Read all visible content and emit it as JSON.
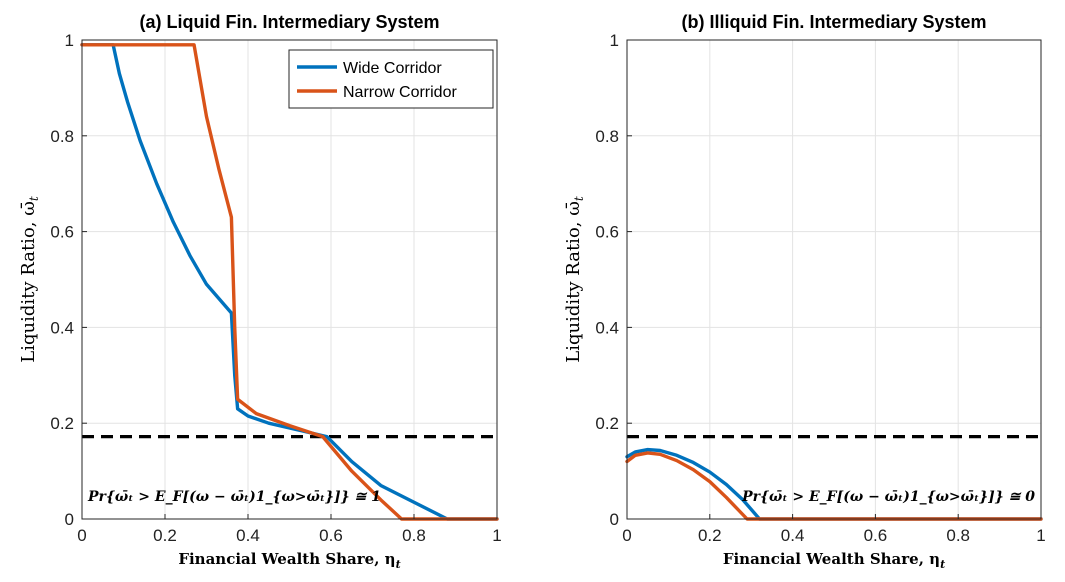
{
  "chart_data": [
    {
      "type": "line",
      "title": "(a) Liquid Fin. Intermediary System",
      "xlabel": "Financial Wealth Share, η",
      "xlabel_sub": "t",
      "ylabel": "Liquidity Ratio, ω̄",
      "ylabel_sub": "t",
      "xlim": [
        0,
        1
      ],
      "ylim": [
        0,
        1
      ],
      "xticks": [
        0,
        0.2,
        0.4,
        0.6,
        0.8,
        1
      ],
      "yticks": [
        0,
        0.2,
        0.4,
        0.6,
        0.8,
        1
      ],
      "xtick_labels": [
        "0",
        "0.2",
        "0.4",
        "0.6",
        "0.8",
        "1"
      ],
      "ytick_labels": [
        "0",
        "0.2",
        "0.4",
        "0.6",
        "0.8",
        "1"
      ],
      "grid": true,
      "legend": "top-right",
      "annotation": "Pr{ω̄ₜ > E_F[(ω − ω̄ₜ)1_{ω>ω̄ₜ}]} ≅ 1",
      "hline": {
        "y": 0.172,
        "style": "dashed",
        "color": "#000000"
      },
      "series": [
        {
          "name": "Wide Corridor",
          "color": "#0072BD",
          "x": [
            0.0,
            0.075,
            0.09,
            0.11,
            0.14,
            0.18,
            0.22,
            0.26,
            0.3,
            0.33,
            0.36,
            0.368,
            0.375,
            0.4,
            0.45,
            0.5,
            0.55,
            0.59,
            0.65,
            0.72,
            0.8,
            0.88,
            1.0
          ],
          "y": [
            0.99,
            0.99,
            0.93,
            0.87,
            0.79,
            0.7,
            0.62,
            0.55,
            0.49,
            0.46,
            0.43,
            0.3,
            0.23,
            0.215,
            0.2,
            0.19,
            0.18,
            0.172,
            0.12,
            0.07,
            0.035,
            0.0,
            0.0
          ]
        },
        {
          "name": "Narrow Corridor",
          "color": "#D95319",
          "x": [
            0.0,
            0.27,
            0.3,
            0.33,
            0.36,
            0.368,
            0.375,
            0.42,
            0.5,
            0.58,
            0.65,
            0.72,
            0.77,
            1.0
          ],
          "y": [
            0.99,
            0.99,
            0.84,
            0.73,
            0.63,
            0.4,
            0.25,
            0.22,
            0.195,
            0.172,
            0.1,
            0.04,
            0.0,
            0.0
          ]
        }
      ]
    },
    {
      "type": "line",
      "title": "(b) Illiquid Fin. Intermediary System",
      "xlabel": "Financial Wealth Share, η",
      "xlabel_sub": "t",
      "ylabel": "Liquidity Ratio, ω̄",
      "ylabel_sub": "t",
      "xlim": [
        0,
        1
      ],
      "ylim": [
        0,
        1
      ],
      "xticks": [
        0,
        0.2,
        0.4,
        0.6,
        0.8,
        1
      ],
      "yticks": [
        0,
        0.2,
        0.4,
        0.6,
        0.8,
        1
      ],
      "xtick_labels": [
        "0",
        "0.2",
        "0.4",
        "0.6",
        "0.8",
        "1"
      ],
      "ytick_labels": [
        "0",
        "0.2",
        "0.4",
        "0.6",
        "0.8",
        "1"
      ],
      "grid": true,
      "annotation": "Pr{ω̄ₜ > E_F[(ω − ω̄ₜ)1_{ω>ω̄ₜ}]} ≅ 0",
      "hline": {
        "y": 0.172,
        "style": "dashed",
        "color": "#000000"
      },
      "series": [
        {
          "name": "Wide Corridor",
          "color": "#0072BD",
          "x": [
            0.0,
            0.02,
            0.05,
            0.08,
            0.12,
            0.16,
            0.2,
            0.24,
            0.28,
            0.3,
            0.32,
            1.0
          ],
          "y": [
            0.13,
            0.14,
            0.145,
            0.143,
            0.133,
            0.118,
            0.098,
            0.072,
            0.04,
            0.02,
            0.0,
            0.0
          ]
        },
        {
          "name": "Narrow Corridor",
          "color": "#D95319",
          "x": [
            0.0,
            0.02,
            0.05,
            0.08,
            0.12,
            0.16,
            0.2,
            0.24,
            0.27,
            0.29,
            1.0
          ],
          "y": [
            0.12,
            0.133,
            0.138,
            0.135,
            0.122,
            0.103,
            0.078,
            0.045,
            0.018,
            0.0,
            0.0
          ]
        }
      ]
    }
  ]
}
